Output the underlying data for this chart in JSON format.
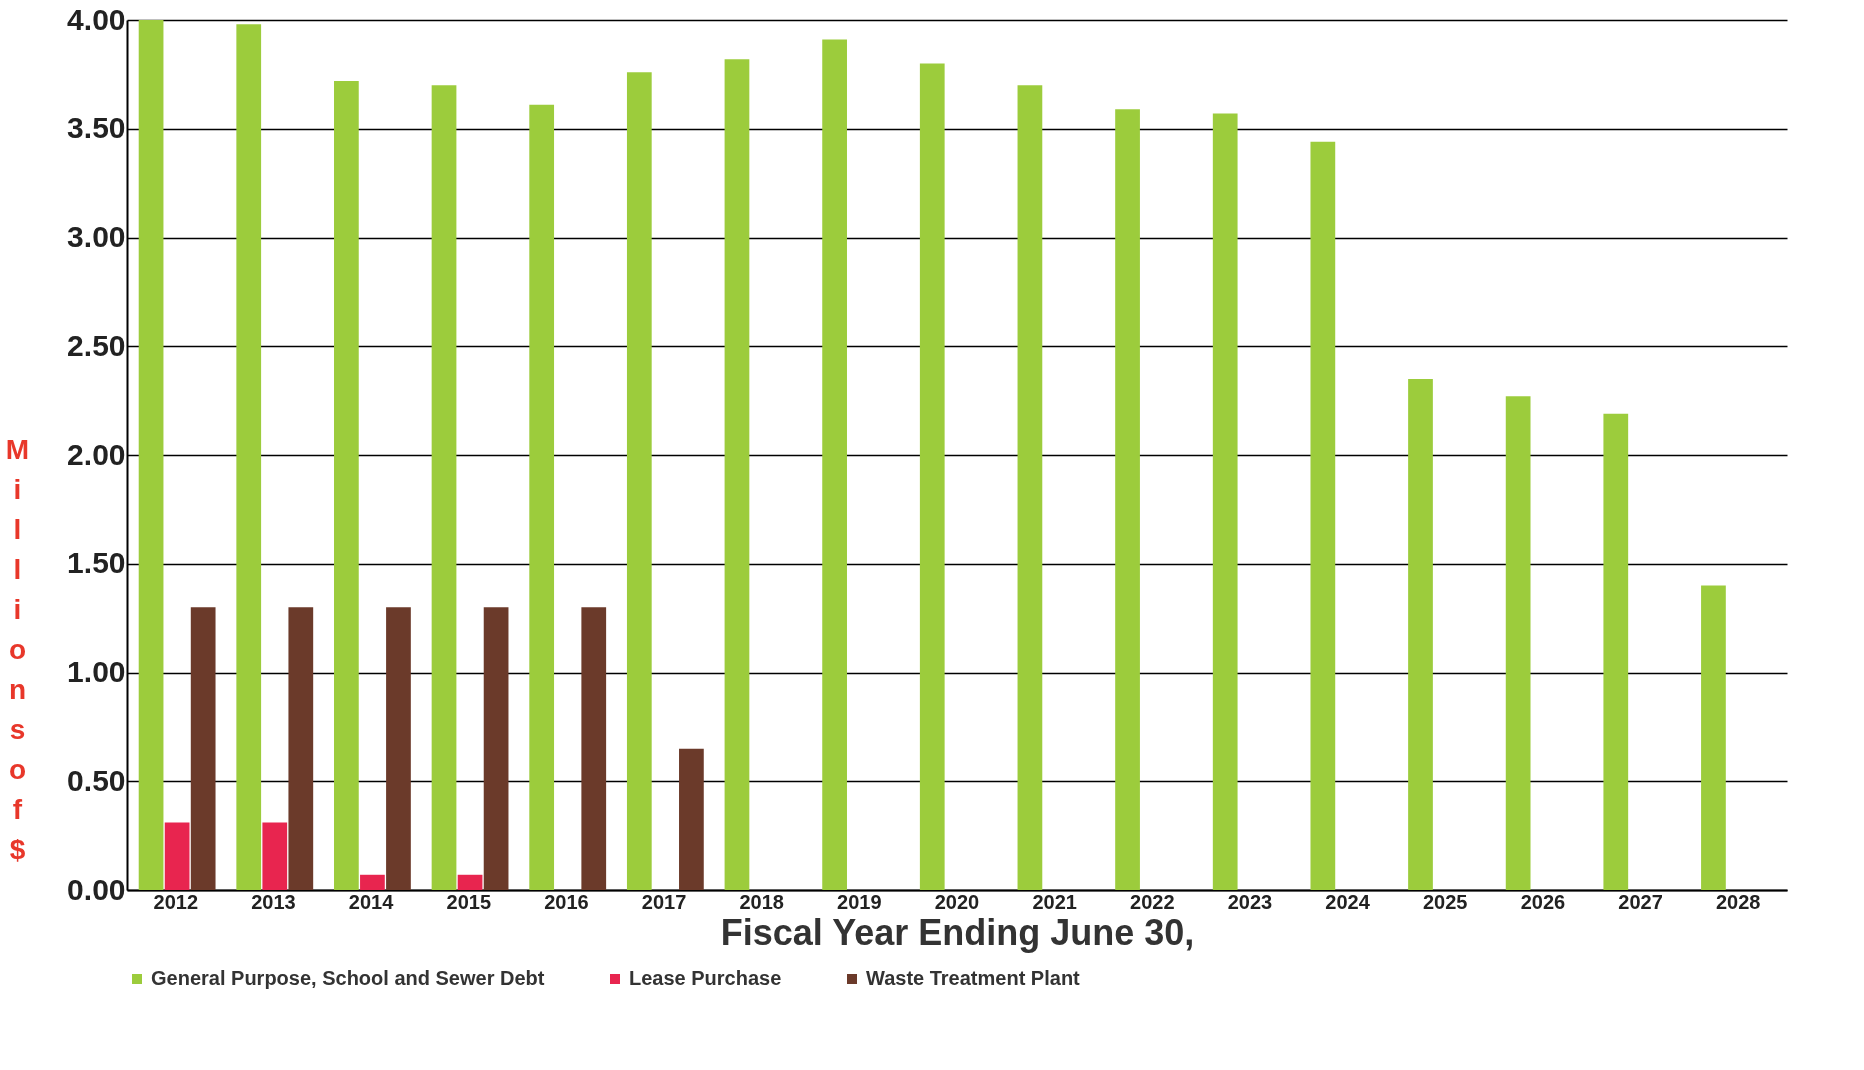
{
  "chart_data": {
    "type": "bar",
    "xlabel": "Fiscal Year Ending June 30,",
    "ylabel": "Millions of $",
    "categories": [
      "2012",
      "2013",
      "2014",
      "2015",
      "2016",
      "2017",
      "2018",
      "2019",
      "2020",
      "2021",
      "2022",
      "2023",
      "2024",
      "2025",
      "2026",
      "2027",
      "2028"
    ],
    "series": [
      {
        "name": "General Purpose, School and Sewer Debt",
        "color": "#9ccc3c",
        "values": [
          4.0,
          3.98,
          3.72,
          3.7,
          3.61,
          3.76,
          3.82,
          3.91,
          3.8,
          3.7,
          3.59,
          3.57,
          3.44,
          2.35,
          2.27,
          2.19,
          1.4
        ]
      },
      {
        "name": "Lease Purchase",
        "color": "#e8254f",
        "values": [
          0.31,
          0.31,
          0.07,
          0.07,
          null,
          null,
          null,
          null,
          null,
          null,
          null,
          null,
          null,
          null,
          null,
          null,
          null
        ]
      },
      {
        "name": "Waste Treatment Plant",
        "color": "#6b3a2a",
        "values": [
          1.3,
          1.3,
          1.3,
          1.3,
          1.3,
          0.65,
          null,
          null,
          null,
          null,
          null,
          null,
          null,
          null,
          null,
          null,
          null
        ]
      }
    ],
    "ylim": [
      0,
      4
    ],
    "yticks": [
      {
        "value": 0,
        "label": "0.00"
      },
      {
        "value": 0.5,
        "label": "0.50"
      },
      {
        "value": 1,
        "label": "1.00"
      },
      {
        "value": 1.5,
        "label": "1.50"
      },
      {
        "value": 2,
        "label": "2.00"
      },
      {
        "value": 2.5,
        "label": "2.50"
      },
      {
        "value": 3,
        "label": "3.00"
      },
      {
        "value": 3.5,
        "label": "3.50"
      },
      {
        "value": 4,
        "label": "4.00"
      }
    ],
    "grid": "y",
    "legend": "bottom"
  }
}
